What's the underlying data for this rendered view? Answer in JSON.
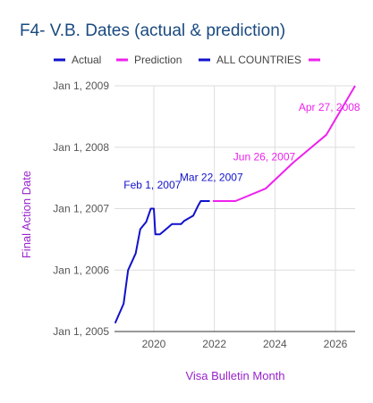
{
  "chart_data": {
    "type": "line",
    "title": "F4- V.B. Dates (actual & prediction)",
    "xlabel": "Visa Bulletin Month",
    "ylabel": "Final Action Date",
    "xlim": [
      2018.7,
      2026.65
    ],
    "ylim": [
      "2005-01-01",
      "2009-01-01"
    ],
    "x_ticks": [
      "2020",
      "2022",
      "2024",
      "2026"
    ],
    "y_ticks": [
      {
        "value": "2005-01-01",
        "label": "Jan 1, 2005"
      },
      {
        "value": "2006-01-01",
        "label": "Jan 1, 2006"
      },
      {
        "value": "2007-01-01",
        "label": "Jan 1, 2007"
      },
      {
        "value": "2008-01-01",
        "label": "Jan 1, 2008"
      },
      {
        "value": "2009-01-01",
        "label": "Jan 1, 2009"
      }
    ],
    "grid": true,
    "legend": {
      "position": "top",
      "entries": [
        {
          "label": "Actual",
          "color": "#1111cc"
        },
        {
          "label": "Prediction",
          "color": "#ee22ee"
        },
        {
          "label": "ALL COUNTRIES",
          "color": "#1111cc"
        },
        {
          "label": "",
          "color": "#ee22ee"
        }
      ]
    },
    "series": [
      {
        "name": "Actual",
        "color": "#1111cc",
        "points": [
          {
            "x": 2018.72,
            "y": "2005-02-20"
          },
          {
            "x": 2019.0,
            "y": "2005-06-15"
          },
          {
            "x": 2019.15,
            "y": "2006-01-01"
          },
          {
            "x": 2019.4,
            "y": "2006-04-10"
          },
          {
            "x": 2019.55,
            "y": "2006-09-01"
          },
          {
            "x": 2019.75,
            "y": "2006-10-15"
          },
          {
            "x": 2019.9,
            "y": "2007-01-01"
          },
          {
            "x": 2020.0,
            "y": "2007-01-01"
          },
          {
            "x": 2020.05,
            "y": "2006-08-01"
          },
          {
            "x": 2020.2,
            "y": "2006-08-01"
          },
          {
            "x": 2020.6,
            "y": "2006-10-01"
          },
          {
            "x": 2020.9,
            "y": "2006-10-01"
          },
          {
            "x": 2021.0,
            "y": "2006-10-20"
          },
          {
            "x": 2021.3,
            "y": "2006-11-20"
          },
          {
            "x": 2021.45,
            "y": "2007-01-15"
          },
          {
            "x": 2021.55,
            "y": "2007-02-15"
          },
          {
            "x": 2021.85,
            "y": "2007-02-15"
          }
        ]
      },
      {
        "name": "Prediction",
        "color": "#ee22ee",
        "points": [
          {
            "x": 2021.95,
            "y": "2007-02-15"
          },
          {
            "x": 2022.7,
            "y": "2007-02-15"
          },
          {
            "x": 2023.7,
            "y": "2007-05-01"
          },
          {
            "x": 2024.6,
            "y": "2007-10-01"
          },
          {
            "x": 2025.7,
            "y": "2008-03-15"
          },
          {
            "x": 2026.65,
            "y": "2009-01-01"
          }
        ]
      }
    ],
    "annotations": [
      {
        "text": "Feb 1, 2007",
        "color": "#1111cc",
        "x": 2019.95,
        "y": "2007-05-01"
      },
      {
        "text": "Mar 22, 2007",
        "color": "#1111cc",
        "x": 2021.9,
        "y": "2007-06-15"
      },
      {
        "text": "Jun 26, 2007",
        "color": "#ee22ee",
        "x": 2023.65,
        "y": "2007-10-15"
      },
      {
        "text": "Apr 27, 2008",
        "color": "#ee22ee",
        "x": 2025.8,
        "y": "2008-08-05"
      }
    ]
  }
}
